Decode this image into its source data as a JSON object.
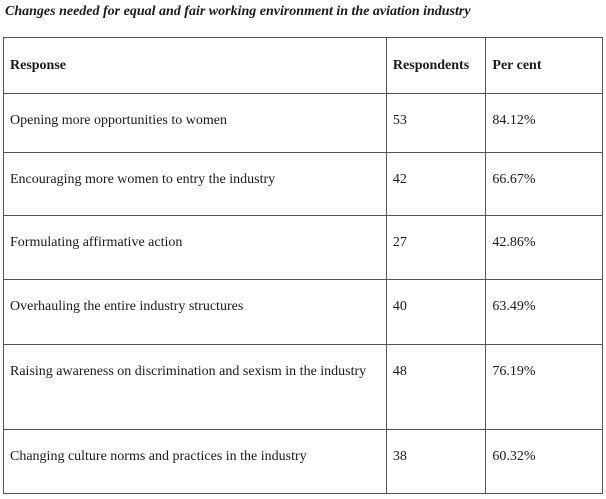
{
  "caption": "Changes needed for equal and fair working environment in the aviation industry",
  "table": {
    "headers": {
      "response": "Response",
      "respondents": "Respondents",
      "percent": "Per cent"
    },
    "rows": [
      {
        "response": "Opening more opportunities to women",
        "respondents": "53",
        "percent": "84.12%"
      },
      {
        "response": "Encouraging more women to entry the industry",
        "respondents": "42",
        "percent": "66.67%"
      },
      {
        "response": "Formulating affirmative action",
        "respondents": "27",
        "percent": "42.86%"
      },
      {
        "response": "Overhauling the entire industry structures",
        "respondents": "40",
        "percent": "63.49%"
      },
      {
        "response": "Raising awareness on discrimination and sexism in the industry",
        "respondents": "48",
        "percent": "76.19%"
      },
      {
        "response": "Changing culture norms and practices in the industry",
        "respondents": "38",
        "percent": "60.32%"
      }
    ]
  }
}
